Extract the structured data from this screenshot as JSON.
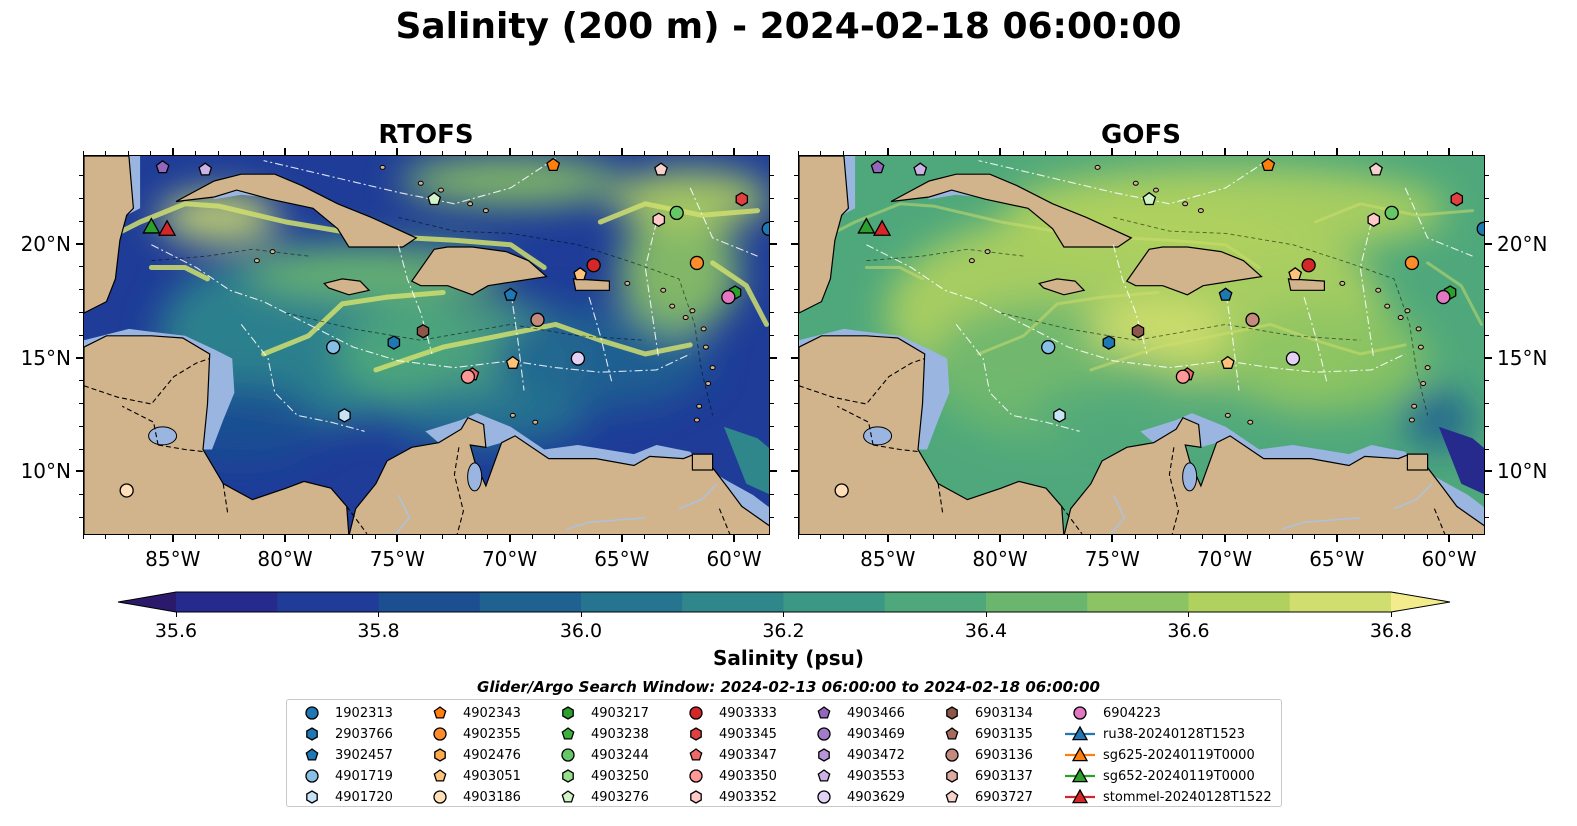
{
  "title": "Salinity (200 m) - 2024-02-18 06:00:00",
  "panels": [
    {
      "title": "RTOFS"
    },
    {
      "title": "GOFS"
    }
  ],
  "map_axes": {
    "lon_ticks": [
      "85°W",
      "80°W",
      "75°W",
      "70°W",
      "65°W",
      "60°W"
    ],
    "lat_ticks": [
      "20°N",
      "15°N",
      "10°N"
    ],
    "lon_range": [
      -89,
      -58.4
    ],
    "lat_range": [
      7.2,
      23.9
    ]
  },
  "colorbar": {
    "label": "Salinity (psu)",
    "ticks": [
      "35.6",
      "35.8",
      "36.0",
      "36.2",
      "36.4",
      "36.6",
      "36.8"
    ],
    "range": [
      35.55,
      36.9
    ],
    "extend": "both",
    "colors": [
      "#2b1a6b",
      "#252a8c",
      "#1e3c98",
      "#1b4f92",
      "#1f6291",
      "#267590",
      "#2f878c",
      "#3b9885",
      "#4fa87b",
      "#6ab66f",
      "#8cc463",
      "#b0d15e",
      "#cfde6e",
      "#f2ec8c"
    ]
  },
  "search_window": "Glider/Argo Search Window: 2024-02-13 06:00:00 to 2024-02-18 06:00:00",
  "legend": {
    "columns": [
      [
        {
          "label": "1902313",
          "marker": "circle",
          "color": "#1f77b4"
        },
        {
          "label": "2903766",
          "marker": "hexagon",
          "color": "#1f77b4"
        },
        {
          "label": "3902457",
          "marker": "pentagon",
          "color": "#1f77b4"
        },
        {
          "label": "4901719",
          "marker": "circle",
          "color": "#87bfe6"
        },
        {
          "label": "4901720",
          "marker": "hexagon",
          "color": "#c7e4f7"
        }
      ],
      [
        {
          "label": "4902343",
          "marker": "pentagon",
          "color": "#ff7f0e"
        },
        {
          "label": "4902355",
          "marker": "circle",
          "color": "#ff8c2a"
        },
        {
          "label": "4902476",
          "marker": "hexagon",
          "color": "#ffa94d"
        },
        {
          "label": "4903051",
          "marker": "pentagon",
          "color": "#ffc27a"
        },
        {
          "label": "4903186",
          "marker": "circle",
          "color": "#ffdfb8"
        }
      ],
      [
        {
          "label": "4903217",
          "marker": "hexagon",
          "color": "#2ca02c"
        },
        {
          "label": "4903238",
          "marker": "pentagon",
          "color": "#3bb23b"
        },
        {
          "label": "4903244",
          "marker": "circle",
          "color": "#66c766"
        },
        {
          "label": "4903250",
          "marker": "hexagon",
          "color": "#98df8a"
        },
        {
          "label": "4903276",
          "marker": "pentagon",
          "color": "#d2f2c8"
        }
      ],
      [
        {
          "label": "4903333",
          "marker": "circle",
          "color": "#d62728"
        },
        {
          "label": "4903345",
          "marker": "hexagon",
          "color": "#e04040"
        },
        {
          "label": "4903347",
          "marker": "pentagon",
          "color": "#ec6a6a"
        },
        {
          "label": "4903350",
          "marker": "circle",
          "color": "#ff9896"
        },
        {
          "label": "4903352",
          "marker": "hexagon",
          "color": "#ffc9c8"
        }
      ],
      [
        {
          "label": "4903466",
          "marker": "pentagon",
          "color": "#9467bd"
        },
        {
          "label": "4903469",
          "marker": "circle",
          "color": "#a37cc9"
        },
        {
          "label": "4903472",
          "marker": "hexagon",
          "color": "#b894d9"
        },
        {
          "label": "4903553",
          "marker": "pentagon",
          "color": "#cdb2e8"
        },
        {
          "label": "4903629",
          "marker": "circle",
          "color": "#e3d0f5"
        }
      ],
      [
        {
          "label": "6903134",
          "marker": "hexagon",
          "color": "#8c564b"
        },
        {
          "label": "6903135",
          "marker": "pentagon",
          "color": "#a56b5f"
        },
        {
          "label": "6903136",
          "marker": "circle",
          "color": "#c48a7d"
        },
        {
          "label": "6903137",
          "marker": "hexagon",
          "color": "#ddaaa0"
        },
        {
          "label": "6903727",
          "marker": "pentagon",
          "color": "#f5d3cc"
        }
      ],
      [
        {
          "label": "6904223",
          "marker": "circle",
          "color": "#e377c2"
        },
        {
          "label": "ru38-20240128T1523",
          "marker": "triangle-line",
          "color": "#1f77b4"
        },
        {
          "label": "sg625-20240119T0000",
          "marker": "triangle-line",
          "color": "#ff7f0e"
        },
        {
          "label": "sg652-20240119T0000",
          "marker": "triangle-line",
          "color": "#2ca02c"
        },
        {
          "label": "stommel-20240128T1522",
          "marker": "triangle-line",
          "color": "#d62728"
        }
      ]
    ]
  },
  "map_colors": {
    "land": "#d2b48c",
    "shelf": "#9ab6e0",
    "deep_low": "#2a1f6e"
  },
  "markers": [
    {
      "id": "1902313",
      "lon": -58.5,
      "lat": 20.7
    },
    {
      "id": "2903766",
      "lon": -75.2,
      "lat": 15.7
    },
    {
      "id": "3902457",
      "lon": -70.0,
      "lat": 17.8
    },
    {
      "id": "4901719",
      "lon": -77.9,
      "lat": 15.5
    },
    {
      "id": "4901720",
      "lon": -77.4,
      "lat": 12.5
    },
    {
      "id": "4902343",
      "lon": -68.1,
      "lat": 23.5
    },
    {
      "id": "4902355",
      "lon": -61.7,
      "lat": 19.2
    },
    {
      "id": "4903051",
      "lon": -66.9,
      "lat": 18.7
    },
    {
      "id": "4903186",
      "lon": -87.1,
      "lat": 9.2
    },
    {
      "id": "4903217",
      "lon": -60.0,
      "lat": 17.9
    },
    {
      "id": "4903244",
      "lon": -62.6,
      "lat": 21.4
    },
    {
      "id": "4903276",
      "lon": -73.4,
      "lat": 22.0
    },
    {
      "id": "4903333",
      "lon": -66.3,
      "lat": 19.1
    },
    {
      "id": "4903345",
      "lon": -59.7,
      "lat": 22.0
    },
    {
      "id": "4903347",
      "lon": -71.7,
      "lat": 14.3
    },
    {
      "id": "4903350",
      "lon": -71.9,
      "lat": 14.2
    },
    {
      "id": "4903352",
      "lon": -63.4,
      "lat": 21.1
    },
    {
      "id": "4903466",
      "lon": -85.5,
      "lat": 23.4
    },
    {
      "id": "4903553",
      "lon": -83.6,
      "lat": 23.3
    },
    {
      "id": "4903629",
      "lon": -67.0,
      "lat": 15.0
    },
    {
      "id": "6903134",
      "lon": -73.9,
      "lat": 16.2
    },
    {
      "id": "6903136",
      "lon": -68.8,
      "lat": 16.7
    },
    {
      "id": "6903727",
      "lon": -63.3,
      "lat": 23.3
    },
    {
      "id": "6903727b",
      "lon": -69.9,
      "lat": 14.8
    },
    {
      "id": "6904223",
      "lon": -60.3,
      "lat": 17.7
    },
    {
      "id": "sg652-20240119T0000",
      "lon": -86.0,
      "lat": 20.8
    },
    {
      "id": "stommel-20240128T1522",
      "lon": -85.3,
      "lat": 20.7
    }
  ],
  "marker_style_by_id": {
    "1902313": "1902313",
    "2903766": "2903766",
    "3902457": "3902457",
    "4901719": "4901719",
    "4901720": "4901720",
    "4902343": "4902343",
    "4902355": "4902355",
    "4903051": "4903051",
    "4903186": "4903186",
    "4903217": "4903217",
    "4903244": "4903244",
    "4903276": "4903276",
    "4903333": "4903333",
    "4903345": "4903345",
    "4903347": "4903347",
    "4903350": "4903350",
    "4903352": "4903352",
    "4903466": "4903466",
    "4903553": "4903553",
    "4903629": "4903629",
    "6903134": "6903134",
    "6903136": "6903136",
    "6903727": "6903727",
    "6903727b": "4903051",
    "6904223": "6904223",
    "sg652-20240119T0000": "sg652-20240119T0000",
    "stommel-20240128T1522": "stommel-20240128T1522"
  }
}
